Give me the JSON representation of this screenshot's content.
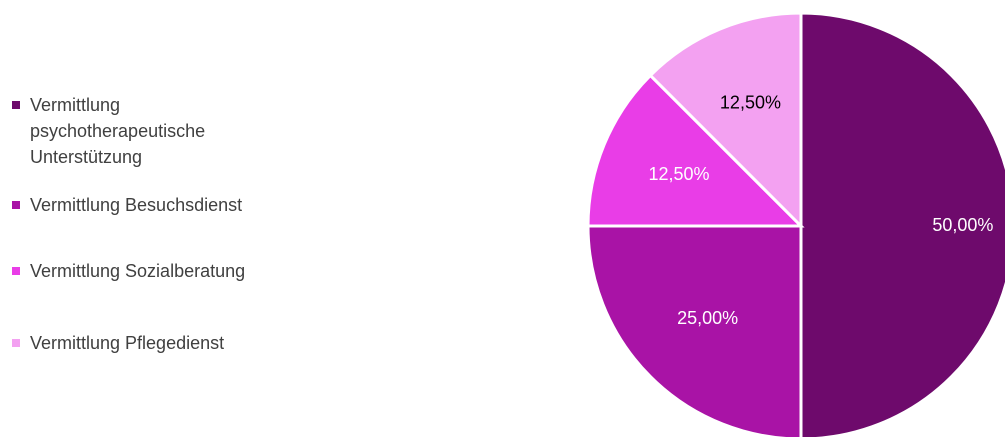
{
  "chart_data": {
    "type": "pie",
    "categories": [
      "Vermittlung psychotherapeutische Unterstützung",
      "Vermittlung Besuchsdienst",
      "Vermittlung Sozialberatung",
      "Vermittlung Pflegedienst"
    ],
    "values": [
      50,
      25,
      12.5,
      12.5
    ],
    "value_labels": [
      "50,00%",
      "25,00%",
      "12,50%",
      "12,50%"
    ],
    "colors": [
      "#6e0a6c",
      "#a913a6",
      "#e93de7",
      "#f3a1f1"
    ]
  }
}
